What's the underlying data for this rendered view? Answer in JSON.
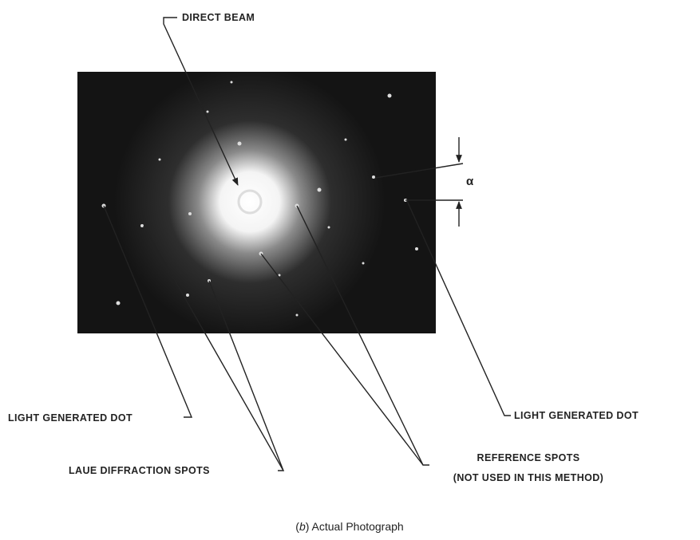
{
  "labels": {
    "direct_beam": "DIRECT BEAM",
    "alpha": "α",
    "light_dot_left": "LIGHT GENERATED DOT",
    "light_dot_right": "LIGHT GENERATED DOT",
    "laue_spots": "LAUE DIFFRACTION SPOTS",
    "reference_spots": "REFERENCE SPOTS",
    "reference_note": "(NOT USED IN THIS METHOD)"
  },
  "caption": [
    "(",
    "b",
    ") Actual Photograph"
  ]
}
